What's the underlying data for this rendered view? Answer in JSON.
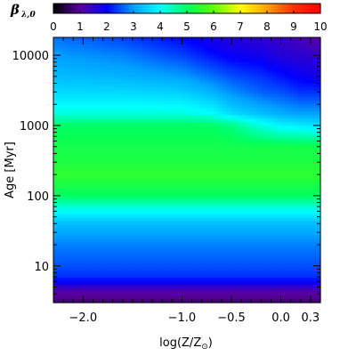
{
  "chart_data": {
    "type": "heatmap",
    "colorbar": {
      "label_symbol": "β",
      "label_subscript": "λ,0",
      "ticks": [
        "0",
        "1",
        "2",
        "3",
        "4",
        "5",
        "6",
        "7",
        "8",
        "9",
        "10"
      ],
      "range": [
        0,
        10
      ],
      "colormap": [
        "#000000",
        "#5a00a0",
        "#0000ff",
        "#00a0ff",
        "#00ffff",
        "#00ff60",
        "#60ff00",
        "#ffff00",
        "#ffa000",
        "#ff3000",
        "#ff0000"
      ]
    },
    "xaxis": {
      "label_prefix": "log(Z/Z",
      "label_subscript": "⊙",
      "label_suffix": ")",
      "range": [
        -2.3,
        0.4
      ],
      "ticks": [
        {
          "value": -2.0,
          "label": "−2.0"
        },
        {
          "value": -1.0,
          "label": "−1.0"
        },
        {
          "value": -0.5,
          "label": "−0.5"
        },
        {
          "value": 0.0,
          "label": "0.0"
        },
        {
          "value": 0.3,
          "label": "0.3"
        }
      ]
    },
    "yaxis": {
      "label": "Age [Myr]",
      "scale": "log",
      "range": [
        3,
        18000
      ],
      "ticks": [
        {
          "value": 10,
          "label": "10"
        },
        {
          "value": 100,
          "label": "100"
        },
        {
          "value": 1000,
          "label": "1000"
        },
        {
          "value": 10000,
          "label": "10000"
        }
      ]
    },
    "grid": {
      "x": [
        -2.3,
        -1.6,
        -1.0,
        -0.7,
        -0.5,
        -0.2,
        0.0,
        0.2,
        0.4
      ],
      "y": [
        3,
        4.5,
        5.8,
        7,
        10,
        20,
        40,
        60,
        100,
        200,
        300,
        500,
        1000,
        1500,
        3000,
        5000,
        10000,
        18000
      ],
      "z": [
        [
          0.7,
          0.7,
          0.7,
          0.7,
          0.7,
          0.7,
          0.7,
          0.7,
          0.7
        ],
        [
          1.2,
          1.2,
          1.2,
          1.2,
          1.2,
          1.2,
          1.2,
          1.2,
          1.2
        ],
        [
          1.9,
          1.9,
          1.9,
          1.9,
          1.9,
          1.9,
          1.9,
          1.9,
          1.9
        ],
        [
          2.3,
          2.3,
          2.3,
          2.3,
          2.3,
          2.3,
          2.3,
          2.3,
          2.3
        ],
        [
          2.5,
          2.5,
          2.5,
          2.5,
          2.5,
          2.5,
          2.5,
          2.5,
          2.5
        ],
        [
          2.8,
          2.8,
          2.8,
          2.8,
          2.8,
          2.8,
          2.8,
          2.8,
          2.8
        ],
        [
          3.3,
          3.3,
          3.3,
          3.3,
          3.3,
          3.3,
          3.3,
          3.3,
          3.3
        ],
        [
          4.0,
          4.0,
          4.0,
          4.0,
          4.0,
          4.0,
          4.0,
          4.0,
          4.0
        ],
        [
          5.0,
          5.0,
          5.0,
          5.0,
          5.0,
          5.0,
          5.0,
          5.0,
          5.0
        ],
        [
          5.5,
          5.5,
          5.5,
          5.5,
          5.5,
          5.5,
          5.5,
          5.5,
          5.5
        ],
        [
          5.3,
          5.3,
          5.3,
          5.3,
          5.3,
          5.3,
          5.3,
          5.3,
          5.3
        ],
        [
          5.2,
          5.2,
          5.2,
          5.2,
          5.2,
          5.2,
          5.2,
          5.2,
          5.2
        ],
        [
          5.0,
          5.0,
          5.0,
          5.0,
          4.8,
          4.2,
          3.9,
          3.8,
          3.7
        ],
        [
          4.2,
          4.2,
          4.2,
          4.0,
          3.6,
          3.3,
          3.1,
          3.0,
          3.0
        ],
        [
          3.6,
          3.6,
          3.5,
          3.2,
          2.9,
          2.6,
          2.5,
          2.3,
          2.3
        ],
        [
          3.3,
          3.2,
          3.0,
          2.7,
          2.5,
          2.3,
          2.1,
          1.9,
          1.8
        ],
        [
          3.0,
          2.8,
          2.4,
          2.1,
          1.9,
          1.8,
          1.6,
          1.5,
          1.4
        ],
        [
          2.7,
          2.4,
          2.0,
          1.7,
          1.6,
          1.5,
          1.4,
          1.2,
          1.0
        ]
      ]
    }
  }
}
